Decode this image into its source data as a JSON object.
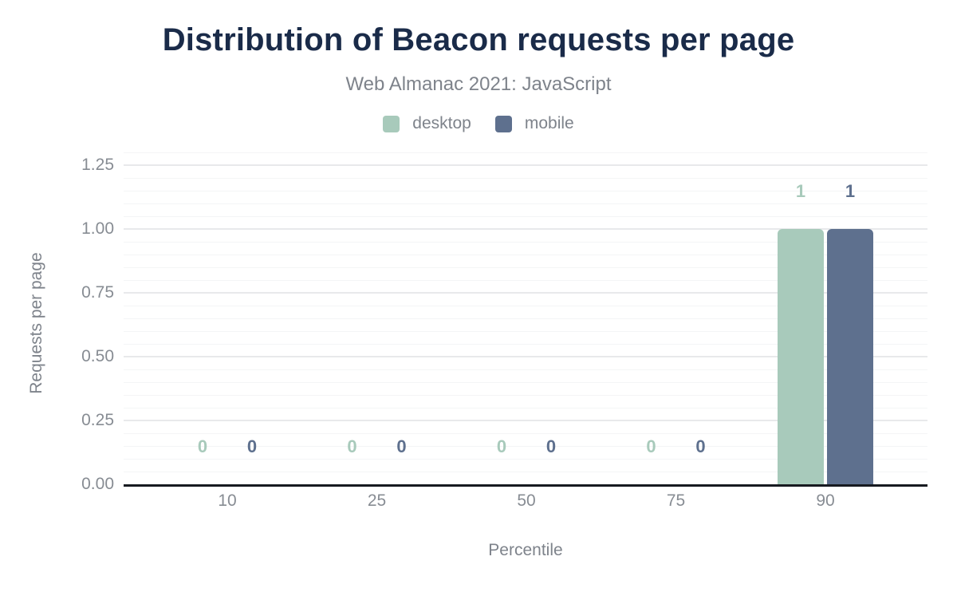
{
  "chart_data": {
    "type": "bar",
    "title": "Distribution of Beacon requests per page",
    "subtitle": "Web Almanac 2021: JavaScript",
    "xlabel": "Percentile",
    "ylabel": "Requests per page",
    "categories": [
      "10",
      "25",
      "50",
      "75",
      "90"
    ],
    "series": [
      {
        "name": "desktop",
        "color": "#a8cabb",
        "values": [
          0,
          0,
          0,
          0,
          1
        ],
        "labels": [
          "0",
          "0",
          "0",
          "0",
          "1"
        ]
      },
      {
        "name": "mobile",
        "color": "#5e708e",
        "values": [
          0,
          0,
          0,
          0,
          1
        ],
        "labels": [
          "0",
          "0",
          "0",
          "0",
          "1"
        ]
      }
    ],
    "ylim": [
      0,
      1.3
    ],
    "y_ticks": [
      {
        "value": 0.0,
        "label": "0.00"
      },
      {
        "value": 0.25,
        "label": "0.25"
      },
      {
        "value": 0.5,
        "label": "0.50"
      },
      {
        "value": 0.75,
        "label": "0.75"
      },
      {
        "value": 1.0,
        "label": "1.00"
      },
      {
        "value": 1.25,
        "label": "1.25"
      }
    ],
    "y_minor_step": 0.05,
    "grid": true,
    "legend_position": "top"
  },
  "colors": {
    "title": "#1a2b49",
    "subtitle": "#7e838b",
    "tick_text": "#878c93",
    "axis_line": "#171a20",
    "grid_major": "#e8e9eb",
    "grid_minor": "#f4f5f6",
    "background": "#ffffff"
  }
}
